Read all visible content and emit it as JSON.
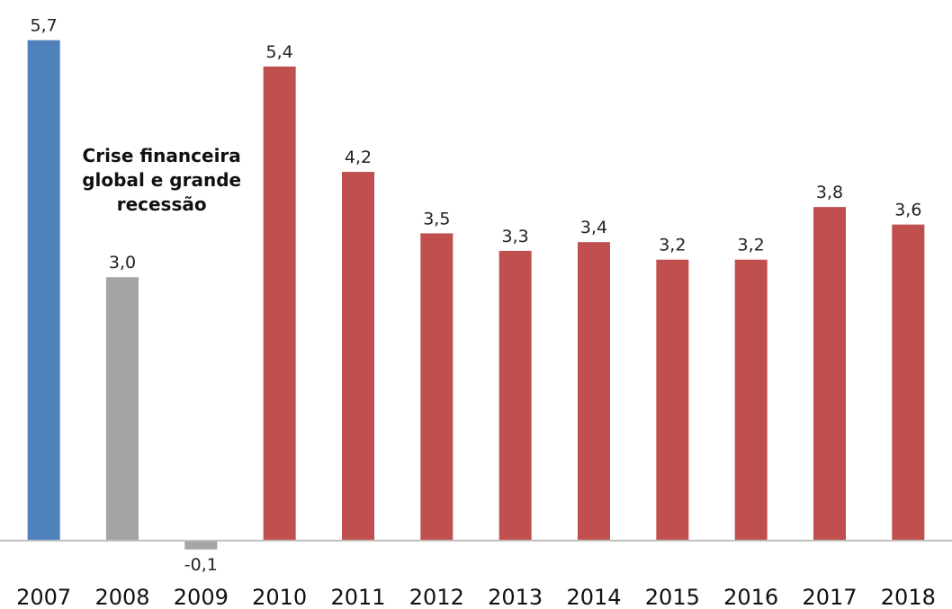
{
  "chart_data": {
    "type": "bar",
    "title": "",
    "xlabel": "",
    "ylabel": "",
    "categories": [
      "2007",
      "2008",
      "2009",
      "2010",
      "2011",
      "2012",
      "2013",
      "2014",
      "2015",
      "2016",
      "2017",
      "2018"
    ],
    "values": [
      5.7,
      3.0,
      -0.1,
      5.4,
      4.2,
      3.5,
      3.3,
      3.4,
      3.2,
      3.2,
      3.8,
      3.6
    ],
    "value_labels": [
      "5,7",
      "3,0",
      "-0,1",
      "5,4",
      "4,2",
      "3,5",
      "3,3",
      "3,4",
      "3,2",
      "3,2",
      "3,8",
      "3,6"
    ],
    "bar_colors": [
      "#4f81bd",
      "#a5a5a5",
      "#a5a5a5",
      "#c0504d",
      "#c0504d",
      "#c0504d",
      "#c0504d",
      "#c0504d",
      "#c0504d",
      "#c0504d",
      "#c0504d",
      "#c0504d"
    ],
    "ylim": [
      -0.3,
      6.0
    ],
    "grid": false,
    "legend": "none",
    "annotation": {
      "lines": [
        "Crise financeira",
        "global e grande",
        "recessão"
      ],
      "between": [
        "2008",
        "2009"
      ]
    }
  }
}
